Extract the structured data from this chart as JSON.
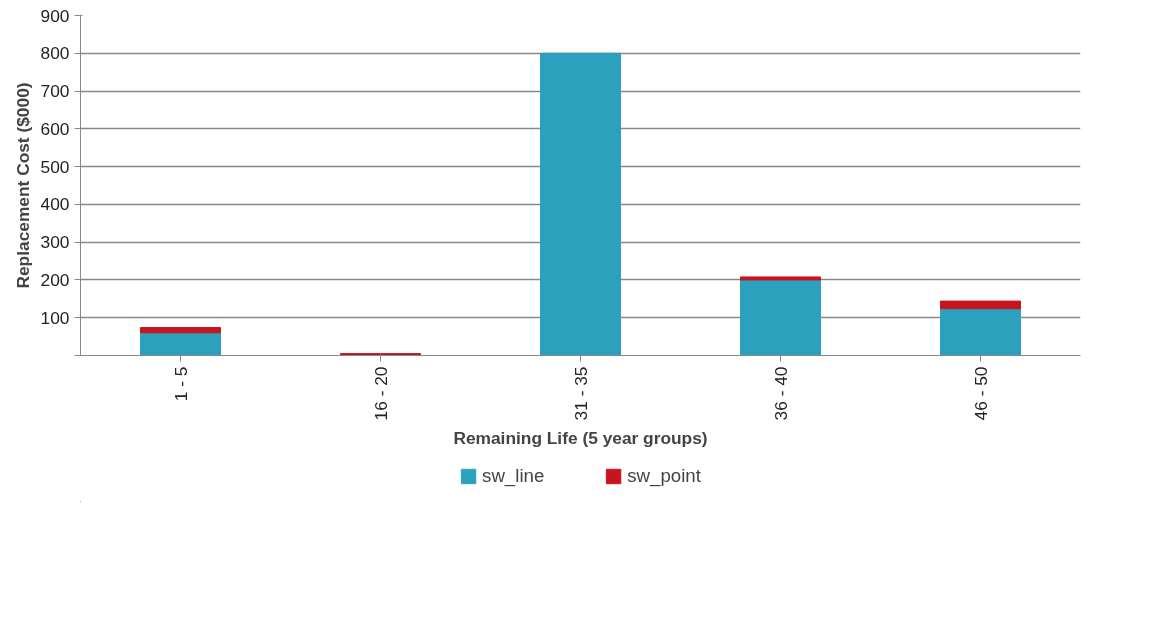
{
  "chart_data": {
    "type": "bar",
    "stacked": true,
    "xlabel": "Remaining Life (5 year groups)",
    "ylabel": "Replacement Cost ($000)",
    "categories": [
      "1 - 5",
      "16 - 20",
      "31 - 35",
      "36 - 40",
      "46 - 50"
    ],
    "series": [
      {
        "name": "sw_line",
        "color": "#2ca1bd",
        "values": [
          60,
          0,
          800,
          200,
          124
        ]
      },
      {
        "name": "sw_point",
        "color": "#c8141e",
        "values": [
          14,
          5,
          null,
          8,
          20
        ]
      }
    ],
    "ylim": [
      0,
      900
    ],
    "yticks": [
      {
        "value": 0,
        "label": null
      },
      100,
      200,
      300,
      400,
      500,
      600,
      700,
      800,
      900
    ],
    "grid": "y",
    "legend": "bottom"
  }
}
